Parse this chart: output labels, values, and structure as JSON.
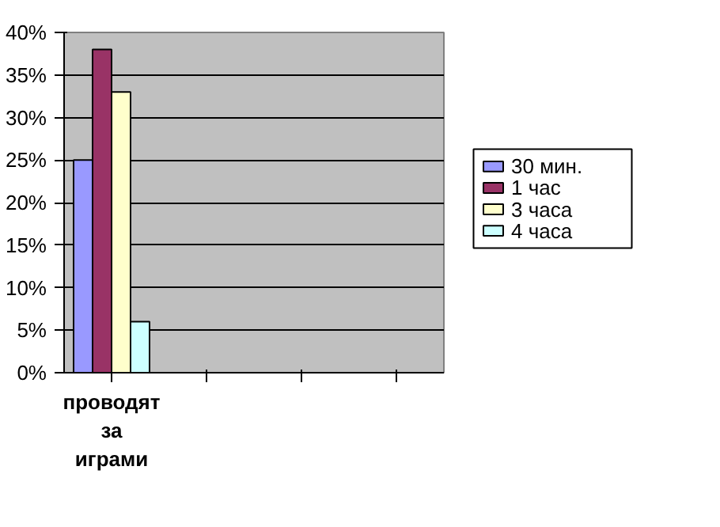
{
  "chart_data": {
    "type": "bar",
    "categories": [
      "проводят за играми",
      null,
      null,
      null
    ],
    "series": [
      {
        "name": "30 мин.",
        "color": "#9999ff",
        "values": [
          25,
          null,
          null,
          null
        ]
      },
      {
        "name": "1 час",
        "color": "#993366",
        "values": [
          38,
          null,
          null,
          null
        ]
      },
      {
        "name": "3 часа",
        "color": "#ffffcc",
        "values": [
          33,
          null,
          null,
          null
        ]
      },
      {
        "name": "4 часа",
        "color": "#ccffff",
        "values": [
          6,
          null,
          null,
          null
        ]
      }
    ],
    "ylim": [
      0,
      40
    ],
    "yticks": [
      {
        "value": 0,
        "label": "0%"
      },
      {
        "value": 5,
        "label": "5%"
      },
      {
        "value": 10,
        "label": "10%"
      },
      {
        "value": 15,
        "label": "15%"
      },
      {
        "value": 20,
        "label": "20%"
      },
      {
        "value": 25,
        "label": "25%"
      },
      {
        "value": 30,
        "label": "30%"
      },
      {
        "value": 35,
        "label": "35%"
      },
      {
        "value": 40,
        "label": "40%"
      }
    ],
    "grid": "y",
    "legend": "right"
  }
}
